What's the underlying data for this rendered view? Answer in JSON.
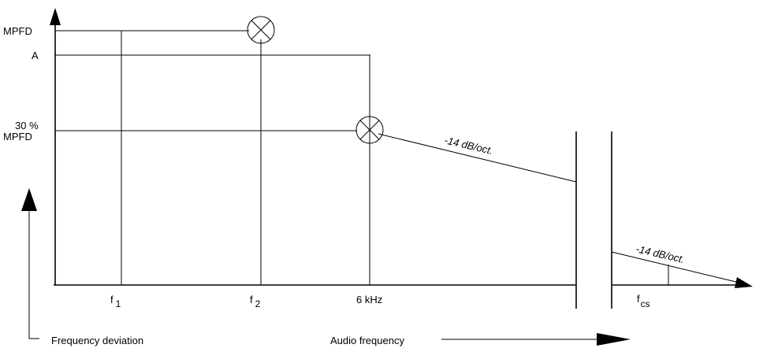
{
  "y_labels": {
    "mpfd": "MPFD",
    "a": "A",
    "thirty_pct_line1": "30 %",
    "thirty_pct_line2": "MPFD"
  },
  "x_labels": {
    "f1_main": "f",
    "f1_sub": "1",
    "f2_main": "f",
    "f2_sub": "2",
    "six_khz": "6 kHz",
    "fcs_main": "f",
    "fcs_sub": "cs"
  },
  "slope_labels": {
    "upper": "-14 dB/oct.",
    "lower": "-14 dB/oct."
  },
  "axis_captions": {
    "vertical": "Frequency deviation",
    "horizontal": "Audio frequency"
  }
}
